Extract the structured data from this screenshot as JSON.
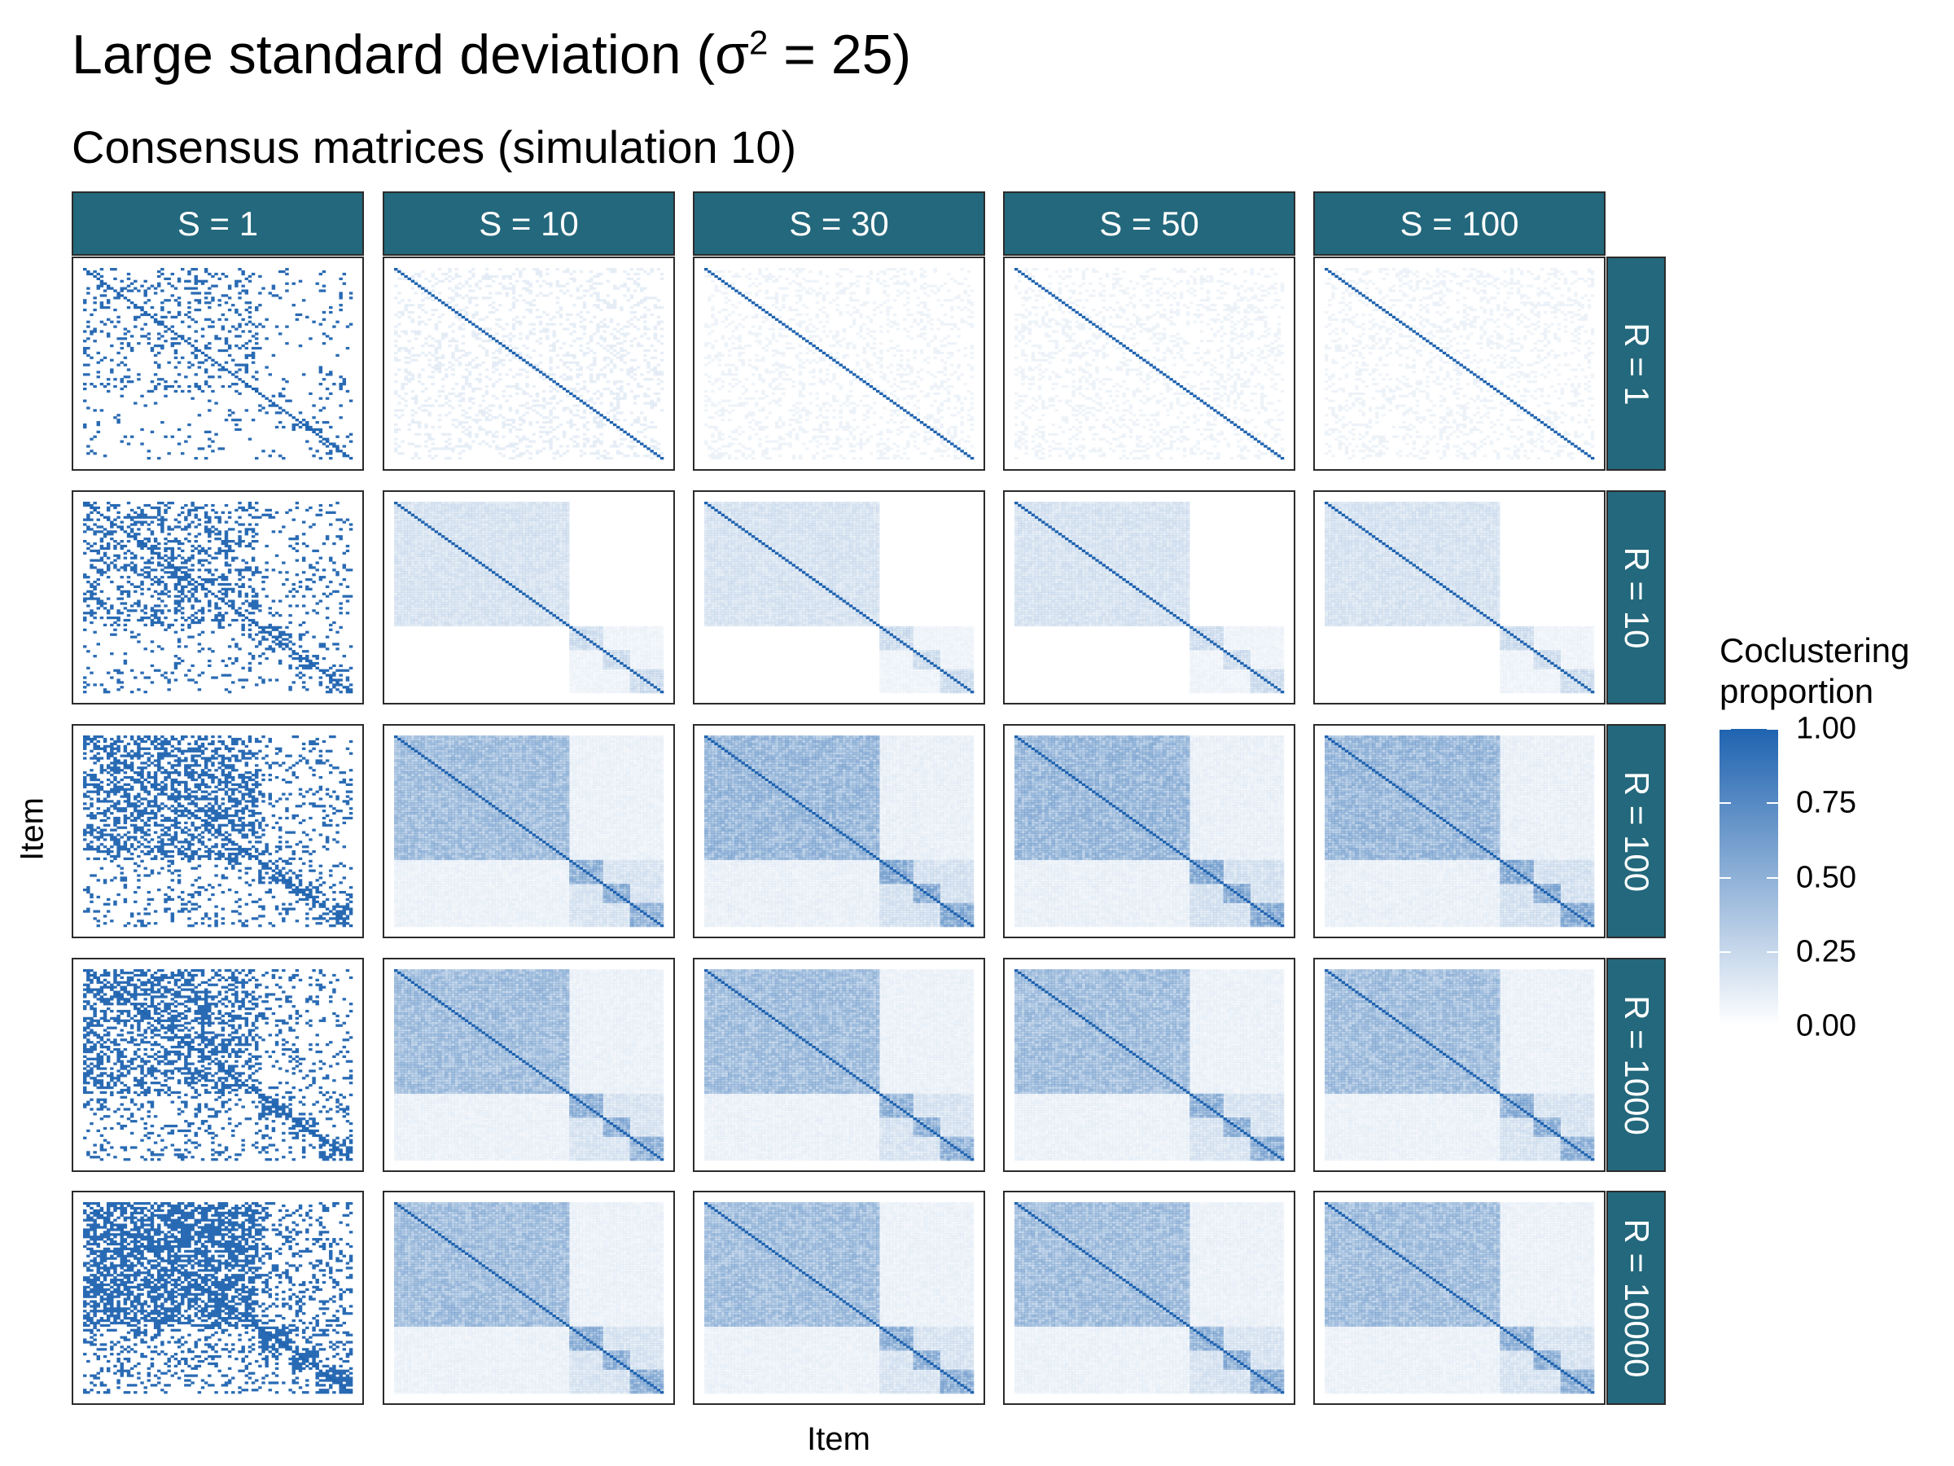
{
  "title": "Large standard deviation (σ",
  "title_sup": "2",
  "title_tail": " = 25)",
  "subtitle": "Consensus matrices (simulation 10)",
  "colors": {
    "strip": "#23687c",
    "high": "#1f63b0",
    "low": "#ffffff"
  },
  "chart_data": {
    "type": "heatmap",
    "title": "Large standard deviation (σ2 = 25)",
    "subtitle": "Consensus matrices (simulation 10)",
    "xlabel": "Item",
    "ylabel": "Item",
    "facet_columns": [
      "S = 1",
      "S = 10",
      "S = 30",
      "S = 50",
      "S = 100"
    ],
    "facet_rows": [
      "R = 1",
      "R = 10",
      "R = 100",
      "R = 1000",
      "R = 10000"
    ],
    "legend": {
      "title": "Coclustering proportion",
      "title_lines": [
        "Coclustering",
        "proportion"
      ],
      "position": "right",
      "range": [
        0,
        1
      ],
      "ticks": [
        1.0,
        0.75,
        0.5,
        0.25,
        0.0
      ],
      "tick_labels": [
        "1.00",
        "0.75",
        "0.50",
        "0.25",
        "0.00"
      ]
    },
    "diagonal_value": 1.0,
    "approx_block_intensity": [
      [
        0.9,
        0.08,
        0.06,
        0.06,
        0.06
      ],
      [
        0.9,
        0.25,
        0.25,
        0.25,
        0.25
      ],
      [
        0.9,
        0.6,
        0.65,
        0.65,
        0.65
      ],
      [
        0.9,
        0.6,
        0.6,
        0.6,
        0.6
      ],
      [
        0.95,
        0.6,
        0.6,
        0.6,
        0.6
      ]
    ]
  }
}
